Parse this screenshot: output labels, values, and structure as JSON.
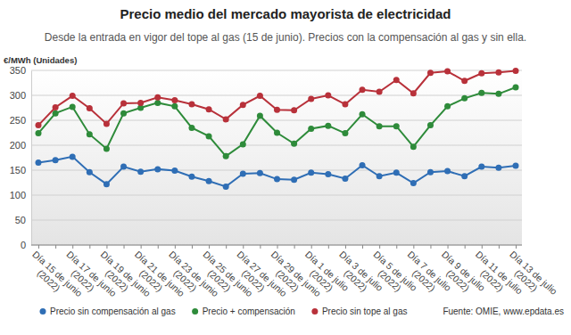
{
  "chart_data": {
    "type": "line",
    "title": "Precio medio del mercado mayorista de electricidad",
    "subtitle": "Desde la entrada en vigor del tope al gas (15 de junio). Precios con la compensación al gas y sin ella.",
    "y_label": "€/MWh (Unidades)",
    "annotations": [
      "Fuente: OMIE, www.epdata.es"
    ],
    "categories": [
      "Día 15 de junio (2022)",
      null,
      "Día 17 de junio (2022)",
      null,
      "Día 19 de junio (2022)",
      null,
      "Día 21 de junio (2022)",
      null,
      "Día 23 de junio (2022)",
      null,
      "Día 25 de junio (2022)",
      null,
      "Día 27 de junio (2022)",
      null,
      "Día 29 de junio (2022)",
      null,
      "Día 1 de julio (2022)",
      null,
      "Día 3 de julio (2022)",
      null,
      "Día 5 de julio (2022)",
      null,
      "Día 7 de julio (2022)",
      null,
      "Día 9 de julio (2022)",
      null,
      "Día 11 de julio (2022)",
      null,
      "Día 13 de julio (2022)"
    ],
    "series": [
      {
        "name": "Precio sin compensación al gas",
        "color": "#2f6eb5",
        "marker": "circle",
        "values": [
          165,
          170,
          177,
          146,
          122,
          157,
          147,
          152,
          149,
          137,
          128,
          117,
          143,
          144,
          132,
          131,
          145,
          142,
          133,
          160,
          138,
          145,
          124,
          146,
          148,
          138,
          157,
          155,
          159
        ]
      },
      {
        "name": "Precio + compensación",
        "color": "#2e8b3a",
        "marker": "circle",
        "values": [
          224,
          264,
          277,
          222,
          193,
          264,
          275,
          285,
          278,
          235,
          218,
          178,
          202,
          259,
          225,
          203,
          233,
          239,
          224,
          262,
          238,
          238,
          197,
          240,
          278,
          294,
          305,
          303,
          316
        ]
      },
      {
        "name": "Precio sin tope al gas",
        "color": "#b8313a",
        "marker": "circle",
        "values": [
          240,
          276,
          299,
          274,
          243,
          284,
          285,
          296,
          290,
          282,
          272,
          252,
          281,
          299,
          271,
          270,
          293,
          300,
          282,
          311,
          307,
          331,
          304,
          345,
          348,
          329,
          344,
          346,
          349
        ]
      }
    ],
    "ylim": [
      0,
      350
    ],
    "yticks": [
      0,
      50,
      100,
      150,
      200,
      250,
      300,
      350
    ],
    "grid": true,
    "legend": "bottom"
  }
}
